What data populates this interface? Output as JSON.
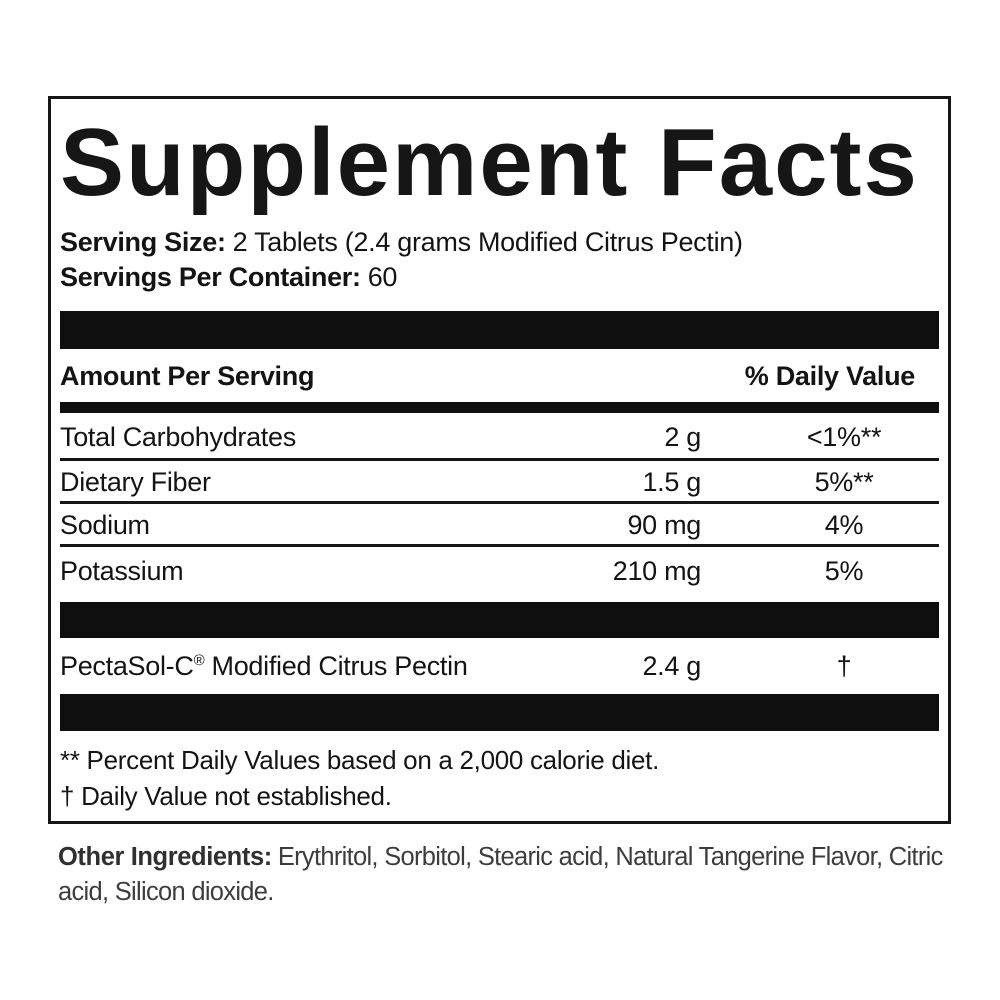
{
  "label": {
    "title": "Supplement Facts",
    "serving_size_label": "Serving Size:",
    "serving_size_value": "2 Tablets (2.4 grams Modified Citrus Pectin)",
    "servings_per_container_label": "Servings Per Container:",
    "servings_per_container_value": "60",
    "amount_header": "Amount Per Serving",
    "dv_header": "% Daily Value",
    "rows": [
      {
        "name": "Total Carbohydrates",
        "amount": "2 g",
        "dv": "<1%**"
      },
      {
        "name": "Dietary Fiber",
        "amount": "1.5 g",
        "dv": "5%**"
      },
      {
        "name": "Sodium",
        "amount": "90 mg",
        "dv": "4%"
      },
      {
        "name": "Potassium",
        "amount": "210 mg",
        "dv": "5%"
      }
    ],
    "special_row": {
      "brand": "PectaSol-C",
      "reg_mark": "®",
      "rest": " Modified Citrus Pectin",
      "amount": "2.4 g",
      "dv": "†"
    },
    "footnotes": [
      "** Percent Daily Values based on a 2,000 calorie diet.",
      "† Daily Value not established."
    ]
  },
  "other_ingredients": {
    "label": "Other Ingredients:",
    "value": "Erythritol, Sorbitol, Stearic acid, Natural Tangerine Flavor, Citric acid, Silicon dioxide."
  },
  "colors": {
    "ink": "#161616",
    "bar": "#0f0f0f",
    "background": "#ffffff"
  }
}
